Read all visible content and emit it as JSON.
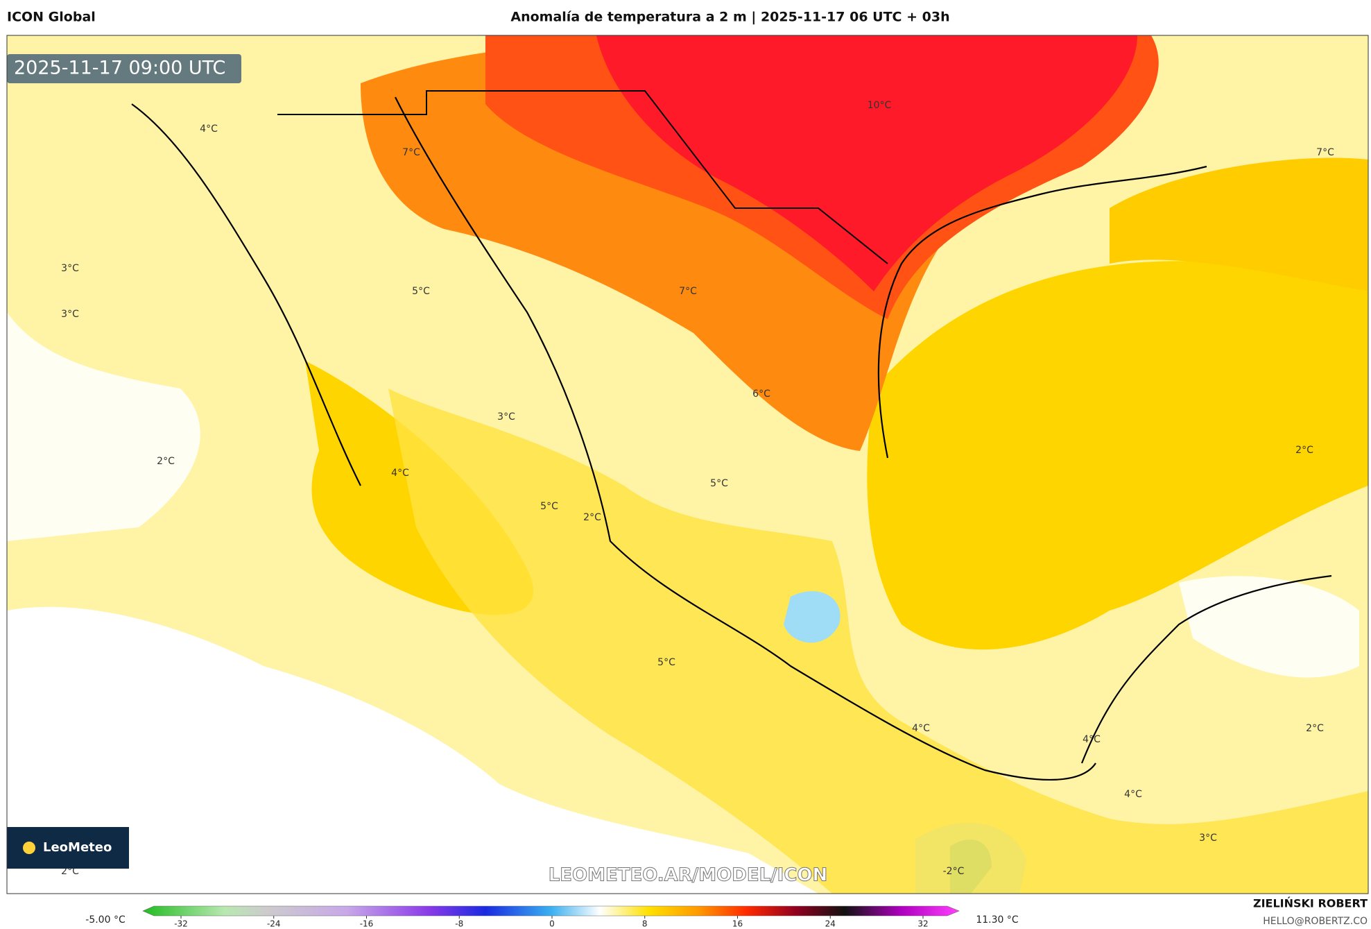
{
  "header": {
    "model": "ICON Global",
    "title": "Anomalía de temperatura a 2 m | 2025-11-17 06 UTC + 03h"
  },
  "map": {
    "timestamp": "2025-11-17 09:00 UTC",
    "contour_labels": [
      "10°C",
      "7°C",
      "4°C",
      "7°C",
      "3°C",
      "3°C",
      "5°C",
      "7°C",
      "6°C",
      "3°C",
      "2°C",
      "4°C",
      "5°C",
      "5°C",
      "2°C",
      "2°C",
      "5°C",
      "4°C",
      "4°C",
      "2°C",
      "4°C",
      "3°C",
      "-2°C",
      "2°C"
    ],
    "watermark": "LEOMETEO.AR/MODEL/ICON",
    "logo": "LeoMeteo"
  },
  "colorbar": {
    "min_label": "-5.00 °C",
    "max_label": "11.30 °C",
    "ticks": [
      -32,
      -24,
      -16,
      -8,
      0,
      8,
      16,
      24,
      32
    ]
  },
  "footer": {
    "author": "ZIELIŃSKI ROBERT",
    "email": "HELLO@ROBERTZ.CO"
  }
}
